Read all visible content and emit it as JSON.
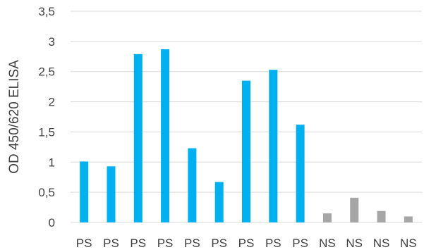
{
  "chart_data": {
    "type": "bar",
    "title": "",
    "xlabel": "",
    "ylabel": "OD 450/620 ELISA",
    "ylim": [
      0,
      3.5
    ],
    "yticks": [
      "0",
      "0,5",
      "1",
      "1,5",
      "2",
      "2,5",
      "3",
      "3,5"
    ],
    "ytick_values": [
      0,
      0.5,
      1,
      1.5,
      2,
      2.5,
      3,
      3.5
    ],
    "grid": true,
    "legend": "none",
    "categories": [
      "PS",
      "PS",
      "PS",
      "PS",
      "PS",
      "PS",
      "PS",
      "PS",
      "PS",
      "NS",
      "NS",
      "NS",
      "NS"
    ],
    "values": [
      1.01,
      0.93,
      2.79,
      2.87,
      1.23,
      0.67,
      2.35,
      2.53,
      1.62,
      0.15,
      0.41,
      0.19,
      0.1
    ],
    "colors": {
      "PS": "#00b0f0",
      "NS": "#a6a6a6"
    }
  }
}
